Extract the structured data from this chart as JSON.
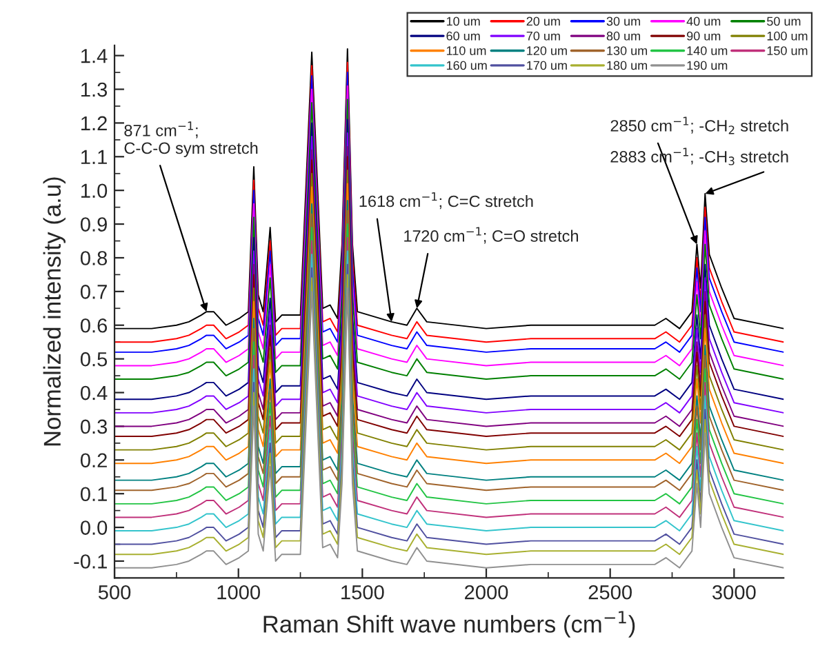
{
  "chart_data": {
    "type": "line",
    "xlabel": "Raman Shift wave numbers (cm$^{−1}$)",
    "ylabel": "Normalized intensity (a.u)",
    "legend": "top right",
    "xlim": [
      500,
      3200
    ],
    "ylim": [
      -0.15,
      1.43
    ],
    "xticks": [
      500,
      1000,
      1500,
      2000,
      2500,
      3000
    ],
    "yticks": [
      {
        "value": -0.1,
        "label": "-0.1"
      },
      {
        "value": 0.0,
        "label": "0.0"
      },
      {
        "value": 0.1,
        "label": "0.1"
      },
      {
        "value": 0.2,
        "label": "0.2"
      },
      {
        "value": 0.3,
        "label": "0.3"
      },
      {
        "value": 0.4,
        "label": "0.4"
      },
      {
        "value": 0.5,
        "label": "0.5"
      },
      {
        "value": 0.6,
        "label": "0.6"
      },
      {
        "value": 0.7,
        "label": "0.7"
      },
      {
        "value": 0.8,
        "label": "0.8"
      },
      {
        "value": 0.9,
        "label": "0.9"
      },
      {
        "value": 1.0,
        "label": "1.0"
      },
      {
        "value": 1.1,
        "label": "1.1"
      },
      {
        "value": 1.2,
        "label": "1.2"
      },
      {
        "value": 1.3,
        "label": "1.3"
      },
      {
        "value": 1.4,
        "label": "1.4"
      }
    ],
    "x": [
      500,
      650,
      750,
      800,
      850,
      871,
      900,
      950,
      1003,
      1040,
      1062,
      1080,
      1100,
      1128,
      1150,
      1175,
      1250,
      1296,
      1340,
      1370,
      1400,
      1418,
      1440,
      1460,
      1480,
      1618,
      1680,
      1720,
      1760,
      2000,
      2180,
      2680,
      2725,
      2780,
      2830,
      2850,
      2865,
      2883,
      2900,
      2950,
      3000,
      3200
    ],
    "annotations": [
      {
        "text": "871 cm$^{−1}$;\nC-C-O sym stretch",
        "x": 871,
        "y": 0.64
      },
      {
        "text": "1618 cm$^{−1}$; C=C stretch",
        "x": 1618,
        "y": 0.61
      },
      {
        "text": "1720 cm$^{−1}$; C=O stretch",
        "x": 1720,
        "y": 0.65
      },
      {
        "text": "2850 cm$^{−1}$; -CH$_{2}$ stretch",
        "x": 2850,
        "y": 0.84
      },
      {
        "text": "2883 cm$^{−1}$; -CH$_{3}$ stretch",
        "x": 2883,
        "y": 0.99
      }
    ],
    "series": [
      {
        "name": "10 um",
        "color": "#000000",
        "values": [
          0.59,
          0.59,
          0.6,
          0.61,
          0.63,
          0.64,
          0.64,
          0.6,
          0.62,
          0.64,
          1.07,
          0.69,
          0.64,
          0.89,
          0.61,
          0.63,
          0.63,
          1.41,
          0.65,
          0.66,
          0.62,
          0.84,
          1.42,
          0.84,
          0.64,
          0.61,
          0.6,
          0.65,
          0.61,
          0.59,
          0.6,
          0.6,
          0.62,
          0.59,
          0.64,
          0.84,
          0.71,
          0.99,
          0.81,
          0.71,
          0.62,
          0.59
        ]
      },
      {
        "name": "20 um",
        "color": "#ff0000",
        "values": [
          0.55,
          0.55,
          0.56,
          0.57,
          0.59,
          0.6,
          0.6,
          0.56,
          0.58,
          0.6,
          1.03,
          0.65,
          0.6,
          0.85,
          0.57,
          0.59,
          0.59,
          1.37,
          0.61,
          0.62,
          0.58,
          0.8,
          1.38,
          0.8,
          0.6,
          0.57,
          0.56,
          0.61,
          0.57,
          0.55,
          0.56,
          0.56,
          0.58,
          0.55,
          0.6,
          0.8,
          0.67,
          0.95,
          0.77,
          0.67,
          0.58,
          0.55
        ]
      },
      {
        "name": "30 um",
        "color": "#0000ff",
        "values": [
          0.52,
          0.52,
          0.53,
          0.54,
          0.56,
          0.57,
          0.57,
          0.53,
          0.55,
          0.57,
          1.0,
          0.62,
          0.57,
          0.82,
          0.54,
          0.56,
          0.56,
          1.34,
          0.58,
          0.59,
          0.55,
          0.77,
          1.35,
          0.77,
          0.57,
          0.54,
          0.53,
          0.58,
          0.54,
          0.52,
          0.53,
          0.53,
          0.55,
          0.52,
          0.57,
          0.77,
          0.64,
          0.92,
          0.74,
          0.64,
          0.55,
          0.52
        ]
      },
      {
        "name": "40 um",
        "color": "#ff00ff",
        "values": [
          0.48,
          0.48,
          0.49,
          0.5,
          0.52,
          0.53,
          0.53,
          0.49,
          0.51,
          0.53,
          0.96,
          0.58,
          0.53,
          0.78,
          0.5,
          0.52,
          0.52,
          1.3,
          0.54,
          0.55,
          0.51,
          0.73,
          1.31,
          0.73,
          0.53,
          0.5,
          0.49,
          0.54,
          0.5,
          0.48,
          0.49,
          0.49,
          0.51,
          0.48,
          0.53,
          0.73,
          0.6,
          0.88,
          0.7,
          0.6,
          0.51,
          0.48
        ]
      },
      {
        "name": "50 um",
        "color": "#008000",
        "values": [
          0.44,
          0.44,
          0.45,
          0.46,
          0.48,
          0.49,
          0.49,
          0.45,
          0.47,
          0.49,
          0.92,
          0.54,
          0.49,
          0.74,
          0.46,
          0.48,
          0.48,
          1.26,
          0.5,
          0.51,
          0.47,
          0.69,
          1.27,
          0.69,
          0.49,
          0.46,
          0.45,
          0.5,
          0.46,
          0.44,
          0.45,
          0.45,
          0.47,
          0.44,
          0.49,
          0.69,
          0.56,
          0.84,
          0.66,
          0.56,
          0.47,
          0.44
        ]
      },
      {
        "name": "60 um",
        "color": "#000080",
        "values": [
          0.38,
          0.38,
          0.39,
          0.4,
          0.42,
          0.43,
          0.43,
          0.39,
          0.41,
          0.43,
          0.86,
          0.48,
          0.43,
          0.68,
          0.4,
          0.42,
          0.42,
          1.2,
          0.44,
          0.45,
          0.41,
          0.63,
          1.21,
          0.63,
          0.43,
          0.4,
          0.39,
          0.44,
          0.4,
          0.38,
          0.39,
          0.39,
          0.41,
          0.38,
          0.43,
          0.63,
          0.5,
          0.78,
          0.6,
          0.5,
          0.41,
          0.38
        ]
      },
      {
        "name": "70 um",
        "color": "#8000ff",
        "values": [
          0.34,
          0.34,
          0.35,
          0.36,
          0.38,
          0.39,
          0.39,
          0.35,
          0.37,
          0.39,
          0.82,
          0.44,
          0.39,
          0.64,
          0.36,
          0.38,
          0.38,
          1.16,
          0.4,
          0.41,
          0.37,
          0.59,
          1.17,
          0.59,
          0.39,
          0.36,
          0.35,
          0.4,
          0.36,
          0.34,
          0.35,
          0.35,
          0.37,
          0.34,
          0.39,
          0.59,
          0.46,
          0.74,
          0.56,
          0.46,
          0.37,
          0.34
        ]
      },
      {
        "name": "80 um",
        "color": "#800080",
        "values": [
          0.3,
          0.3,
          0.31,
          0.32,
          0.34,
          0.35,
          0.35,
          0.31,
          0.33,
          0.35,
          0.78,
          0.4,
          0.35,
          0.6,
          0.32,
          0.34,
          0.34,
          1.12,
          0.36,
          0.37,
          0.33,
          0.55,
          1.13,
          0.55,
          0.35,
          0.32,
          0.31,
          0.36,
          0.32,
          0.3,
          0.31,
          0.31,
          0.33,
          0.3,
          0.35,
          0.55,
          0.42,
          0.7,
          0.52,
          0.42,
          0.33,
          0.3
        ]
      },
      {
        "name": "90 um",
        "color": "#800000",
        "values": [
          0.27,
          0.27,
          0.28,
          0.29,
          0.31,
          0.32,
          0.32,
          0.28,
          0.3,
          0.32,
          0.75,
          0.37,
          0.32,
          0.57,
          0.29,
          0.31,
          0.31,
          1.09,
          0.33,
          0.34,
          0.3,
          0.52,
          1.1,
          0.52,
          0.32,
          0.29,
          0.28,
          0.33,
          0.29,
          0.27,
          0.28,
          0.28,
          0.3,
          0.27,
          0.32,
          0.52,
          0.39,
          0.67,
          0.49,
          0.39,
          0.3,
          0.27
        ]
      },
      {
        "name": "100 um",
        "color": "#808000",
        "values": [
          0.23,
          0.23,
          0.24,
          0.25,
          0.27,
          0.28,
          0.28,
          0.24,
          0.26,
          0.28,
          0.71,
          0.33,
          0.28,
          0.53,
          0.25,
          0.27,
          0.27,
          1.05,
          0.29,
          0.3,
          0.26,
          0.48,
          1.06,
          0.48,
          0.28,
          0.25,
          0.24,
          0.29,
          0.25,
          0.23,
          0.24,
          0.24,
          0.26,
          0.23,
          0.28,
          0.48,
          0.35,
          0.63,
          0.45,
          0.35,
          0.26,
          0.23
        ]
      },
      {
        "name": "110 um",
        "color": "#ff8000",
        "values": [
          0.19,
          0.19,
          0.2,
          0.21,
          0.23,
          0.24,
          0.24,
          0.2,
          0.22,
          0.24,
          0.67,
          0.29,
          0.24,
          0.49,
          0.21,
          0.23,
          0.23,
          1.01,
          0.25,
          0.26,
          0.22,
          0.44,
          1.02,
          0.44,
          0.24,
          0.21,
          0.2,
          0.25,
          0.21,
          0.19,
          0.2,
          0.2,
          0.22,
          0.19,
          0.24,
          0.44,
          0.31,
          0.59,
          0.41,
          0.31,
          0.22,
          0.19
        ]
      },
      {
        "name": "120 um",
        "color": "#008080",
        "values": [
          0.14,
          0.14,
          0.15,
          0.16,
          0.18,
          0.19,
          0.19,
          0.15,
          0.17,
          0.19,
          0.62,
          0.24,
          0.19,
          0.44,
          0.16,
          0.18,
          0.18,
          0.96,
          0.2,
          0.21,
          0.17,
          0.39,
          0.97,
          0.39,
          0.19,
          0.16,
          0.15,
          0.2,
          0.16,
          0.14,
          0.15,
          0.15,
          0.17,
          0.14,
          0.19,
          0.39,
          0.26,
          0.54,
          0.36,
          0.26,
          0.17,
          0.14
        ]
      },
      {
        "name": "130 um",
        "color": "#a0632b",
        "values": [
          0.11,
          0.11,
          0.12,
          0.13,
          0.15,
          0.16,
          0.16,
          0.12,
          0.14,
          0.16,
          0.59,
          0.21,
          0.16,
          0.41,
          0.13,
          0.15,
          0.15,
          0.93,
          0.17,
          0.18,
          0.14,
          0.36,
          0.94,
          0.36,
          0.16,
          0.13,
          0.12,
          0.17,
          0.13,
          0.11,
          0.12,
          0.12,
          0.14,
          0.11,
          0.16,
          0.36,
          0.23,
          0.51,
          0.33,
          0.23,
          0.14,
          0.11
        ]
      },
      {
        "name": "140 um",
        "color": "#22c444",
        "values": [
          0.07,
          0.07,
          0.08,
          0.09,
          0.11,
          0.12,
          0.12,
          0.08,
          0.1,
          0.12,
          0.55,
          0.17,
          0.12,
          0.37,
          0.09,
          0.11,
          0.11,
          0.89,
          0.13,
          0.14,
          0.1,
          0.32,
          0.9,
          0.32,
          0.12,
          0.09,
          0.08,
          0.13,
          0.09,
          0.07,
          0.08,
          0.08,
          0.1,
          0.07,
          0.12,
          0.32,
          0.19,
          0.47,
          0.29,
          0.19,
          0.1,
          0.07
        ]
      },
      {
        "name": "150 um",
        "color": "#c0307a",
        "values": [
          0.03,
          0.03,
          0.04,
          0.05,
          0.07,
          0.08,
          0.08,
          0.04,
          0.06,
          0.08,
          0.51,
          0.13,
          0.08,
          0.33,
          0.05,
          0.07,
          0.07,
          0.85,
          0.09,
          0.1,
          0.06,
          0.28,
          0.86,
          0.28,
          0.08,
          0.05,
          0.04,
          0.09,
          0.05,
          0.03,
          0.04,
          0.04,
          0.06,
          0.03,
          0.08,
          0.28,
          0.15,
          0.43,
          0.25,
          0.15,
          0.06,
          0.03
        ]
      },
      {
        "name": "160 um",
        "color": "#33c4cc",
        "values": [
          -0.01,
          -0.01,
          0,
          0.01,
          0.03,
          0.04,
          0.04,
          0,
          0.02,
          0.04,
          0.47,
          0.09,
          0.04,
          0.29,
          0.01,
          0.03,
          0.03,
          0.81,
          0.05,
          0.06,
          0.02,
          0.24,
          0.82,
          0.24,
          0.04,
          0.01,
          0,
          0.05,
          0.01,
          -0.01,
          0,
          0,
          0.02,
          -0.01,
          0.04,
          0.24,
          0.11,
          0.39,
          0.21,
          0.11,
          0.02,
          -0.01
        ]
      },
      {
        "name": "170 um",
        "color": "#5050a0",
        "values": [
          -0.05,
          -0.05,
          -0.04,
          -0.03,
          -0.01,
          0,
          0,
          -0.04,
          -0.02,
          0,
          0.43,
          0.05,
          0,
          0.25,
          -0.03,
          -0.01,
          -0.01,
          0.77,
          0.01,
          0.02,
          -0.02,
          0.2,
          0.78,
          0.2,
          0,
          -0.03,
          -0.04,
          0.01,
          -0.03,
          -0.05,
          -0.04,
          -0.04,
          -0.02,
          -0.05,
          0,
          0.2,
          0.07,
          0.35,
          0.17,
          0.07,
          -0.02,
          -0.05
        ]
      },
      {
        "name": "180 um",
        "color": "#a8b030",
        "values": [
          -0.08,
          -0.08,
          -0.07,
          -0.06,
          -0.04,
          -0.03,
          -0.03,
          -0.07,
          -0.05,
          -0.03,
          0.4,
          0.02,
          -0.03,
          0.22,
          -0.06,
          -0.04,
          -0.04,
          0.74,
          -0.02,
          -0.01,
          -0.05,
          0.17,
          0.75,
          0.17,
          -0.03,
          -0.06,
          -0.07,
          -0.02,
          -0.06,
          -0.08,
          -0.07,
          -0.07,
          -0.05,
          -0.08,
          -0.03,
          0.17,
          0.04,
          0.32,
          0.14,
          0.04,
          -0.05,
          -0.08
        ]
      },
      {
        "name": "190 um",
        "color": "#909090",
        "values": [
          -0.12,
          -0.12,
          -0.11,
          -0.1,
          -0.08,
          -0.07,
          -0.07,
          -0.11,
          -0.09,
          -0.07,
          0.36,
          -0.02,
          -0.07,
          0.18,
          -0.1,
          -0.08,
          -0.08,
          0.7,
          -0.06,
          -0.05,
          -0.09,
          0.13,
          0.71,
          0.13,
          -0.07,
          -0.1,
          -0.11,
          -0.06,
          -0.1,
          -0.12,
          -0.11,
          -0.11,
          -0.09,
          -0.12,
          -0.07,
          0.13,
          0.0,
          0.28,
          0.1,
          0.0,
          -0.09,
          -0.12
        ]
      }
    ]
  }
}
